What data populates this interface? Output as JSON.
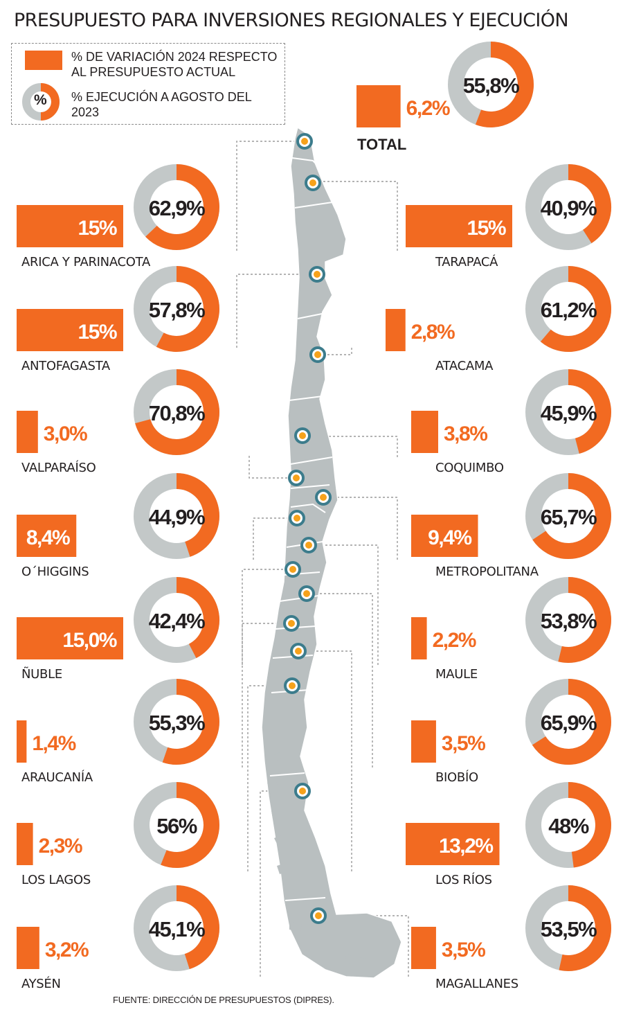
{
  "title": "PRESUPUESTO PARA INVERSIONES REGIONALES Y EJECUCIÓN",
  "legend": {
    "bar_label": "% DE VARIACIÓN 2024 RESPECTO AL PRESUPUESTO ACTUAL",
    "donut_label": "% EJECUCIÓN A AGOSTO DEL 2023",
    "donut_symbol": "%"
  },
  "source": "FUENTE: DIRECCIÓN DE PRESUPUESTOS (DIPRES).",
  "colors": {
    "orange": "#f26a21",
    "gray": "#c3c8c8",
    "text": "#231f20",
    "map_fill": "#b9bfc0",
    "marker_ring": "#3c7c8c",
    "marker_dot": "#f6a21b"
  },
  "chart_data": {
    "type": "bar",
    "series": [
      {
        "name": "% DE VARIACIÓN 2024 RESPECTO AL PRESUPUESTO ACTUAL",
        "chart": "bar"
      },
      {
        "name": "% EJECUCIÓN A AGOSTO DEL 2023",
        "chart": "donut"
      }
    ],
    "total": {
      "name": "TOTAL",
      "variation": 6.2,
      "variation_label": "6,2%",
      "execution": 55.8,
      "execution_label": "55,8%"
    },
    "regions": [
      {
        "name": "ARICA Y PARINACOTA",
        "variation": 15,
        "variation_label": "15%",
        "execution": 62.9,
        "execution_label": "62,9%"
      },
      {
        "name": "TARAPACÁ",
        "variation": 15,
        "variation_label": "15%",
        "execution": 40.9,
        "execution_label": "40,9%"
      },
      {
        "name": "ANTOFAGASTA",
        "variation": 15,
        "variation_label": "15%",
        "execution": 57.8,
        "execution_label": "57,8%"
      },
      {
        "name": "ATACAMA",
        "variation": 2.8,
        "variation_label": "2,8%",
        "execution": 61.2,
        "execution_label": "61,2%"
      },
      {
        "name": "VALPARAÍSO",
        "variation": 3.0,
        "variation_label": "3,0%",
        "execution": 70.8,
        "execution_label": "70,8%"
      },
      {
        "name": "COQUIMBO",
        "variation": 3.8,
        "variation_label": "3,8%",
        "execution": 45.9,
        "execution_label": "45,9%"
      },
      {
        "name": "O´HIGGINS",
        "variation": 8.4,
        "variation_label": "8,4%",
        "execution": 44.9,
        "execution_label": "44,9%"
      },
      {
        "name": "METROPOLITANA",
        "variation": 9.4,
        "variation_label": "9,4%",
        "execution": 65.7,
        "execution_label": "65,7%"
      },
      {
        "name": "ÑUBLE",
        "variation": 15.0,
        "variation_label": "15,0%",
        "execution": 42.4,
        "execution_label": "42,4%"
      },
      {
        "name": "MAULE",
        "variation": 2.2,
        "variation_label": "2,2%",
        "execution": 53.8,
        "execution_label": "53,8%"
      },
      {
        "name": "ARAUCANÍA",
        "variation": 1.4,
        "variation_label": "1,4%",
        "execution": 55.3,
        "execution_label": "55,3%"
      },
      {
        "name": "BIOBÍO",
        "variation": 3.5,
        "variation_label": "3,5%",
        "execution": 65.9,
        "execution_label": "65,9%"
      },
      {
        "name": "LOS LAGOS",
        "variation": 2.3,
        "variation_label": "2,3%",
        "execution": 56,
        "execution_label": "56%"
      },
      {
        "name": "LOS RÍOS",
        "variation": 13.2,
        "variation_label": "13,2%",
        "execution": 48,
        "execution_label": "48%"
      },
      {
        "name": "AYSÉN",
        "variation": 3.2,
        "variation_label": "3,2%",
        "execution": 45.1,
        "execution_label": "45,1%"
      },
      {
        "name": "MAGALLANES",
        "variation": 3.5,
        "variation_label": "3,5%",
        "execution": 53.5,
        "execution_label": "53,5%"
      }
    ]
  }
}
